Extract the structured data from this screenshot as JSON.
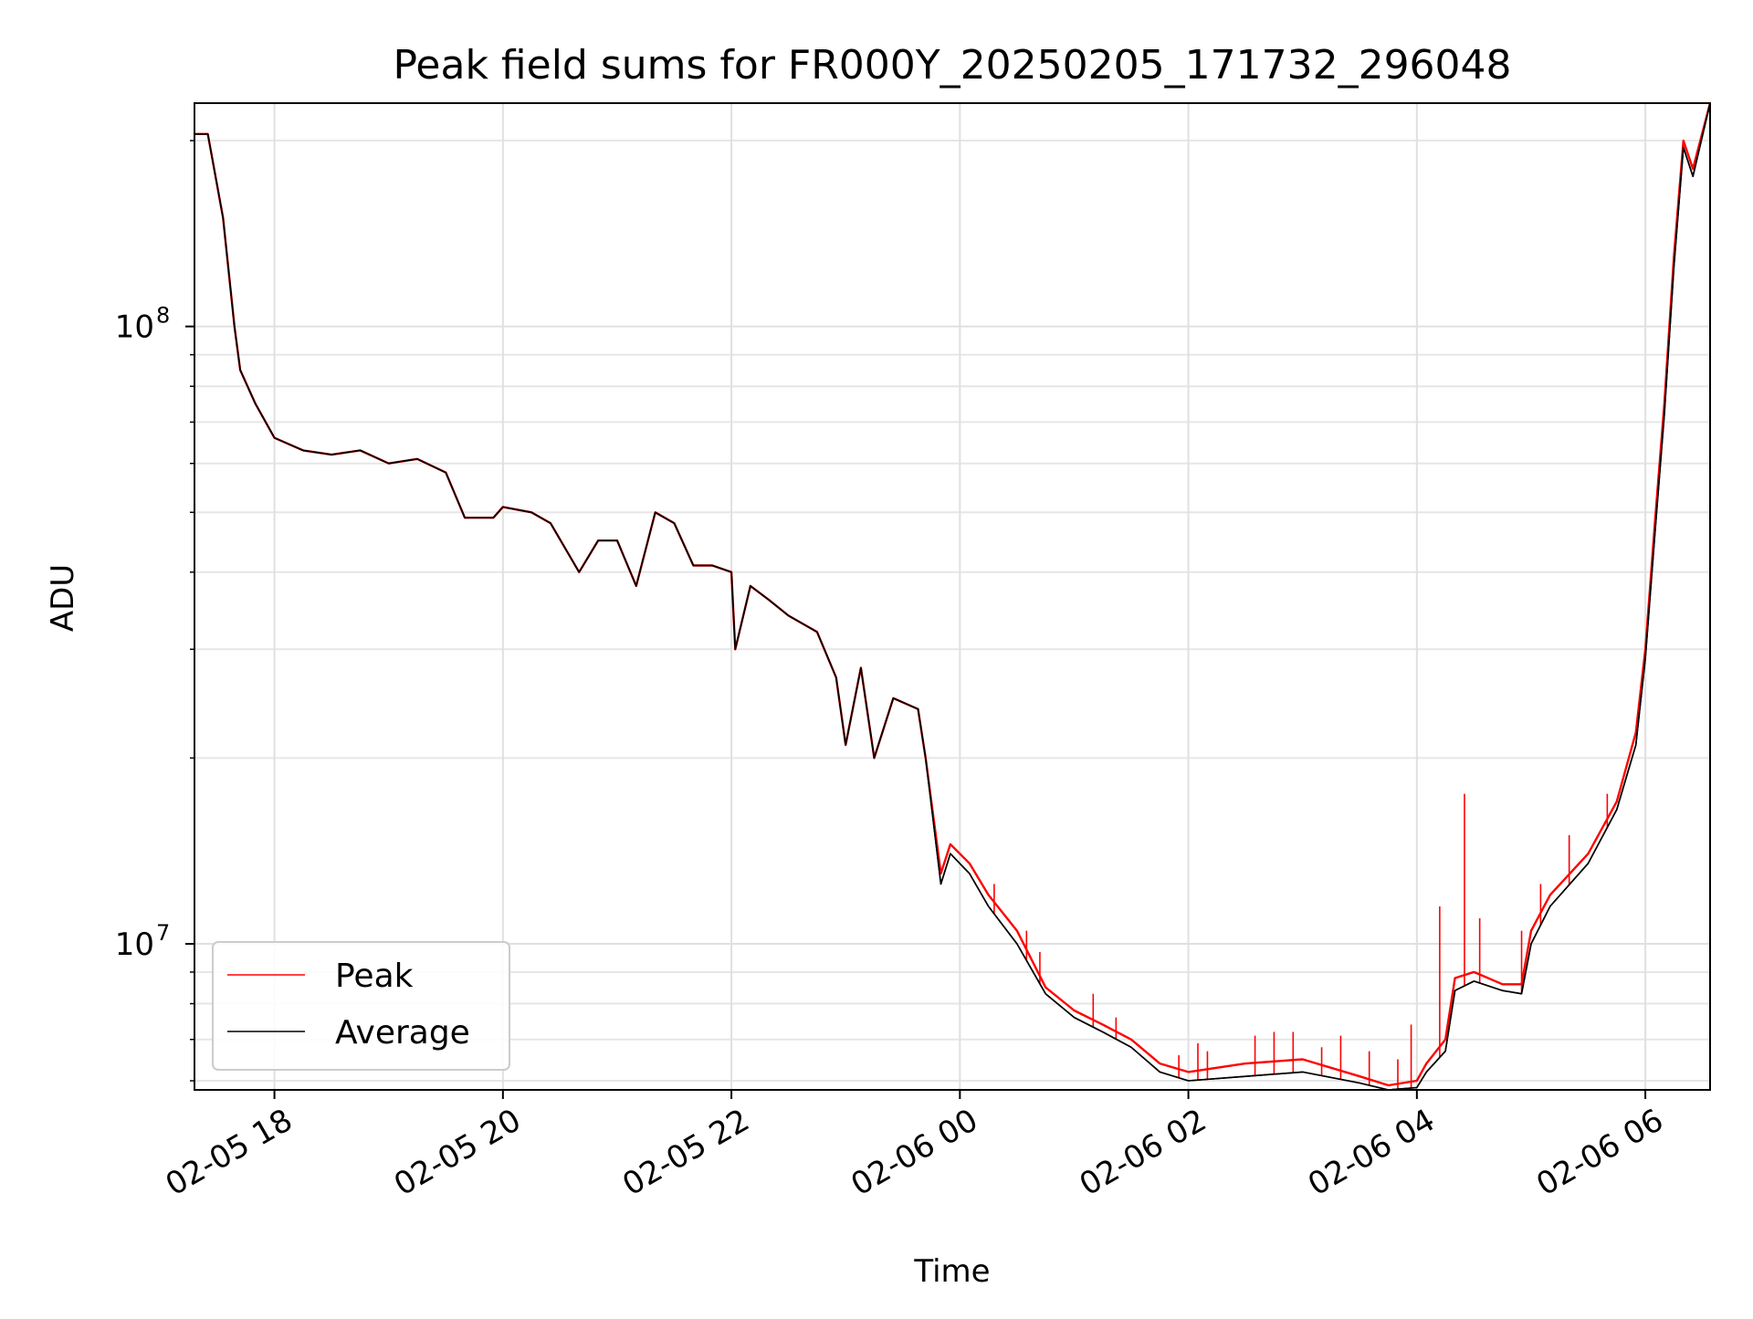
{
  "chart_data": {
    "type": "line",
    "title": "Peak field sums for FR000Y_20250205_171732_296048",
    "xlabel": "Time",
    "ylabel": "ADU",
    "yscale": "log",
    "ylim": [
      5800000,
      230000000
    ],
    "xlim": [
      "2025-02-05 17:18",
      "2025-02-06 06:34"
    ],
    "grid": true,
    "legend_position": "lower-left",
    "x_ticks": [
      {
        "t": "2025-02-05 18:00",
        "label": "02-05 18"
      },
      {
        "t": "2025-02-05 20:00",
        "label": "02-05 20"
      },
      {
        "t": "2025-02-05 22:00",
        "label": "02-05 22"
      },
      {
        "t": "2025-02-06 00:00",
        "label": "02-06 00"
      },
      {
        "t": "2025-02-06 02:00",
        "label": "02-06 02"
      },
      {
        "t": "2025-02-06 04:00",
        "label": "02-06 04"
      },
      {
        "t": "2025-02-06 06:00",
        "label": "02-06 06"
      }
    ],
    "y_ticks": [
      {
        "value": 10000000,
        "base": "10",
        "exp": "7"
      },
      {
        "value": 100000000,
        "base": "10",
        "exp": "8"
      }
    ],
    "series": [
      {
        "name": "Peak",
        "color": "#ff0000",
        "points": [
          [
            "2025-02-05 17:18",
            205000000
          ],
          [
            "2025-02-05 17:25",
            205000000
          ],
          [
            "2025-02-05 17:33",
            150000000
          ],
          [
            "2025-02-05 17:39",
            100000000
          ],
          [
            "2025-02-05 17:42",
            85000000
          ],
          [
            "2025-02-05 17:50",
            75000000
          ],
          [
            "2025-02-05 18:00",
            66000000
          ],
          [
            "2025-02-05 18:15",
            63000000
          ],
          [
            "2025-02-05 18:30",
            62000000
          ],
          [
            "2025-02-05 18:45",
            63000000
          ],
          [
            "2025-02-05 19:00",
            60000000
          ],
          [
            "2025-02-05 19:15",
            61000000
          ],
          [
            "2025-02-05 19:30",
            58000000
          ],
          [
            "2025-02-05 19:40",
            49000000
          ],
          [
            "2025-02-05 19:55",
            49000000
          ],
          [
            "2025-02-05 20:00",
            51000000
          ],
          [
            "2025-02-05 20:15",
            50000000
          ],
          [
            "2025-02-05 20:25",
            48000000
          ],
          [
            "2025-02-05 20:40",
            40000000
          ],
          [
            "2025-02-05 20:50",
            45000000
          ],
          [
            "2025-02-05 21:00",
            45000000
          ],
          [
            "2025-02-05 21:10",
            38000000
          ],
          [
            "2025-02-05 21:20",
            50000000
          ],
          [
            "2025-02-05 21:30",
            48000000
          ],
          [
            "2025-02-05 21:40",
            41000000
          ],
          [
            "2025-02-05 21:50",
            41000000
          ],
          [
            "2025-02-05 22:00",
            40000000
          ],
          [
            "2025-02-05 22:02",
            30000000
          ],
          [
            "2025-02-05 22:10",
            38000000
          ],
          [
            "2025-02-05 22:20",
            36000000
          ],
          [
            "2025-02-05 22:30",
            34000000
          ],
          [
            "2025-02-05 22:45",
            32000000
          ],
          [
            "2025-02-05 22:55",
            27000000
          ],
          [
            "2025-02-05 23:00",
            21000000
          ],
          [
            "2025-02-05 23:08",
            28000000
          ],
          [
            "2025-02-05 23:15",
            20000000
          ],
          [
            "2025-02-05 23:25",
            25000000
          ],
          [
            "2025-02-05 23:38",
            24000000
          ],
          [
            "2025-02-05 23:42",
            20000000
          ],
          [
            "2025-02-05 23:50",
            13000000
          ],
          [
            "2025-02-05 23:55",
            14500000
          ],
          [
            "2025-02-06 00:05",
            13500000
          ],
          [
            "2025-02-06 00:15",
            12000000
          ],
          [
            "2025-02-06 00:30",
            10500000
          ],
          [
            "2025-02-06 00:45",
            8500000
          ],
          [
            "2025-02-06 01:00",
            7800000
          ],
          [
            "2025-02-06 01:15",
            7400000
          ],
          [
            "2025-02-06 01:30",
            7000000
          ],
          [
            "2025-02-06 01:45",
            6400000
          ],
          [
            "2025-02-06 02:00",
            6200000
          ],
          [
            "2025-02-06 02:30",
            6400000
          ],
          [
            "2025-02-06 03:00",
            6500000
          ],
          [
            "2025-02-06 03:30",
            6100000
          ],
          [
            "2025-02-06 03:45",
            5900000
          ],
          [
            "2025-02-06 04:00",
            6000000
          ],
          [
            "2025-02-06 04:05",
            6400000
          ],
          [
            "2025-02-06 04:15",
            7000000
          ],
          [
            "2025-02-06 04:20",
            8800000
          ],
          [
            "2025-02-06 04:30",
            9000000
          ],
          [
            "2025-02-06 04:45",
            8600000
          ],
          [
            "2025-02-06 04:55",
            8600000
          ],
          [
            "2025-02-06 05:00",
            10500000
          ],
          [
            "2025-02-06 05:10",
            12000000
          ],
          [
            "2025-02-06 05:30",
            14000000
          ],
          [
            "2025-02-06 05:45",
            17000000
          ],
          [
            "2025-02-06 05:55",
            22000000
          ],
          [
            "2025-02-06 06:00",
            30000000
          ],
          [
            "2025-02-06 06:05",
            48000000
          ],
          [
            "2025-02-06 06:10",
            75000000
          ],
          [
            "2025-02-06 06:15",
            130000000
          ],
          [
            "2025-02-06 06:20",
            200000000
          ],
          [
            "2025-02-06 06:25",
            180000000
          ],
          [
            "2025-02-06 06:34",
            230000000
          ]
        ],
        "spikes": [
          [
            "2025-02-06 00:18",
            12500000
          ],
          [
            "2025-02-06 00:35",
            10500000
          ],
          [
            "2025-02-06 00:42",
            9700000
          ],
          [
            "2025-02-06 01:10",
            8300000
          ],
          [
            "2025-02-06 01:22",
            7600000
          ],
          [
            "2025-02-06 01:55",
            6600000
          ],
          [
            "2025-02-06 02:05",
            6900000
          ],
          [
            "2025-02-06 02:10",
            6700000
          ],
          [
            "2025-02-06 02:35",
            7100000
          ],
          [
            "2025-02-06 02:45",
            7200000
          ],
          [
            "2025-02-06 02:55",
            7200000
          ],
          [
            "2025-02-06 03:10",
            6800000
          ],
          [
            "2025-02-06 03:20",
            7100000
          ],
          [
            "2025-02-06 03:35",
            6700000
          ],
          [
            "2025-02-06 03:50",
            6500000
          ],
          [
            "2025-02-06 03:57",
            7400000
          ],
          [
            "2025-02-06 04:12",
            11500000
          ],
          [
            "2025-02-06 04:25",
            17500000
          ],
          [
            "2025-02-06 04:33",
            11000000
          ],
          [
            "2025-02-06 04:55",
            10500000
          ],
          [
            "2025-02-06 05:05",
            12500000
          ],
          [
            "2025-02-06 05:20",
            15000000
          ],
          [
            "2025-02-06 05:40",
            17500000
          ]
        ]
      },
      {
        "name": "Average",
        "color": "#000000",
        "points": [
          [
            "2025-02-05 17:18",
            205000000
          ],
          [
            "2025-02-05 17:25",
            205000000
          ],
          [
            "2025-02-05 17:33",
            150000000
          ],
          [
            "2025-02-05 17:39",
            100000000
          ],
          [
            "2025-02-05 17:42",
            85000000
          ],
          [
            "2025-02-05 17:50",
            75000000
          ],
          [
            "2025-02-05 18:00",
            66000000
          ],
          [
            "2025-02-05 18:15",
            63000000
          ],
          [
            "2025-02-05 18:30",
            62000000
          ],
          [
            "2025-02-05 18:45",
            63000000
          ],
          [
            "2025-02-05 19:00",
            60000000
          ],
          [
            "2025-02-05 19:15",
            61000000
          ],
          [
            "2025-02-05 19:30",
            58000000
          ],
          [
            "2025-02-05 19:40",
            49000000
          ],
          [
            "2025-02-05 19:55",
            49000000
          ],
          [
            "2025-02-05 20:00",
            51000000
          ],
          [
            "2025-02-05 20:15",
            50000000
          ],
          [
            "2025-02-05 20:25",
            48000000
          ],
          [
            "2025-02-05 20:40",
            40000000
          ],
          [
            "2025-02-05 20:50",
            45000000
          ],
          [
            "2025-02-05 21:00",
            45000000
          ],
          [
            "2025-02-05 21:10",
            38000000
          ],
          [
            "2025-02-05 21:20",
            50000000
          ],
          [
            "2025-02-05 21:30",
            48000000
          ],
          [
            "2025-02-05 21:40",
            41000000
          ],
          [
            "2025-02-05 21:50",
            41000000
          ],
          [
            "2025-02-05 22:00",
            40000000
          ],
          [
            "2025-02-05 22:02",
            30000000
          ],
          [
            "2025-02-05 22:10",
            38000000
          ],
          [
            "2025-02-05 22:20",
            36000000
          ],
          [
            "2025-02-05 22:30",
            34000000
          ],
          [
            "2025-02-05 22:45",
            32000000
          ],
          [
            "2025-02-05 22:55",
            27000000
          ],
          [
            "2025-02-05 23:00",
            21000000
          ],
          [
            "2025-02-05 23:08",
            28000000
          ],
          [
            "2025-02-05 23:15",
            20000000
          ],
          [
            "2025-02-05 23:25",
            25000000
          ],
          [
            "2025-02-05 23:38",
            24000000
          ],
          [
            "2025-02-05 23:42",
            20000000
          ],
          [
            "2025-02-05 23:50",
            12500000
          ],
          [
            "2025-02-05 23:55",
            14000000
          ],
          [
            "2025-02-06 00:05",
            13000000
          ],
          [
            "2025-02-06 00:15",
            11500000
          ],
          [
            "2025-02-06 00:30",
            10000000
          ],
          [
            "2025-02-06 00:45",
            8300000
          ],
          [
            "2025-02-06 01:00",
            7600000
          ],
          [
            "2025-02-06 01:15",
            7200000
          ],
          [
            "2025-02-06 01:30",
            6800000
          ],
          [
            "2025-02-06 01:45",
            6200000
          ],
          [
            "2025-02-06 02:00",
            6000000
          ],
          [
            "2025-02-06 02:30",
            6100000
          ],
          [
            "2025-02-06 03:00",
            6200000
          ],
          [
            "2025-02-06 03:30",
            5950000
          ],
          [
            "2025-02-06 03:45",
            5800000
          ],
          [
            "2025-02-06 04:00",
            5850000
          ],
          [
            "2025-02-06 04:05",
            6200000
          ],
          [
            "2025-02-06 04:15",
            6700000
          ],
          [
            "2025-02-06 04:20",
            8400000
          ],
          [
            "2025-02-06 04:30",
            8700000
          ],
          [
            "2025-02-06 04:45",
            8400000
          ],
          [
            "2025-02-06 04:55",
            8300000
          ],
          [
            "2025-02-06 05:00",
            10000000
          ],
          [
            "2025-02-06 05:10",
            11500000
          ],
          [
            "2025-02-06 05:30",
            13500000
          ],
          [
            "2025-02-06 05:45",
            16500000
          ],
          [
            "2025-02-06 05:55",
            21000000
          ],
          [
            "2025-02-06 06:00",
            29000000
          ],
          [
            "2025-02-06 06:05",
            46000000
          ],
          [
            "2025-02-06 06:10",
            72000000
          ],
          [
            "2025-02-06 06:15",
            125000000
          ],
          [
            "2025-02-06 06:20",
            195000000
          ],
          [
            "2025-02-06 06:25",
            175000000
          ],
          [
            "2025-02-06 06:34",
            230000000
          ]
        ]
      }
    ]
  }
}
